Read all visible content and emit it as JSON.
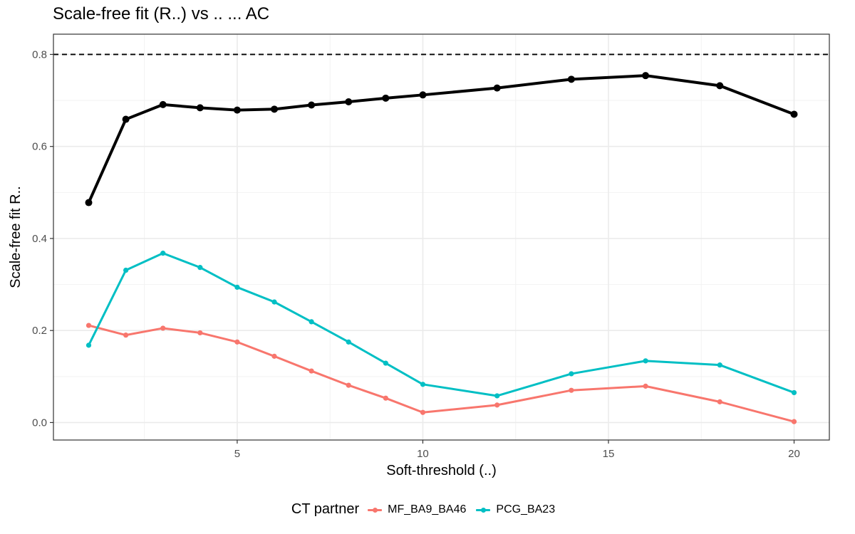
{
  "chart_data": {
    "type": "line",
    "title": "Scale-free fit (R..) vs .. ... AC",
    "xlabel": "Soft-threshold (..)",
    "ylabel": "Scale-free fit R..",
    "xlim": [
      0.05,
      20.95
    ],
    "ylim": [
      -0.038,
      0.844
    ],
    "xticks": [
      5,
      10,
      15,
      20
    ],
    "yticks": [
      0.0,
      0.2,
      0.4,
      0.6,
      0.8
    ],
    "ytick_labels": [
      "0.0",
      "0.2",
      "0.4",
      "0.6",
      "0.8"
    ],
    "grid": true,
    "reference_line": {
      "y": 0.8,
      "style": "dashed",
      "color": "#000000"
    },
    "legend": {
      "title": "CT partner",
      "position": "bottom"
    },
    "x": [
      1,
      2,
      3,
      4,
      5,
      6,
      7,
      8,
      9,
      10,
      12,
      14,
      16,
      18,
      20
    ],
    "series": [
      {
        "name": "",
        "color": "#000000",
        "values": [
          0.478,
          0.659,
          0.691,
          0.684,
          0.679,
          0.681,
          0.69,
          0.697,
          0.705,
          0.712,
          0.727,
          0.746,
          0.754,
          0.732,
          0.67
        ]
      },
      {
        "name": "MF_BA9_BA46",
        "color": "#F8766D",
        "values": [
          0.211,
          0.19,
          0.205,
          0.195,
          0.175,
          0.144,
          0.112,
          0.081,
          0.053,
          0.022,
          0.038,
          0.07,
          0.079,
          0.045,
          0.002
        ]
      },
      {
        "name": "PCG_BA23",
        "color": "#00BFC4",
        "values": [
          0.168,
          0.331,
          0.368,
          0.337,
          0.294,
          0.262,
          0.219,
          0.175,
          0.129,
          0.083,
          0.058,
          0.106,
          0.134,
          0.125,
          0.065
        ]
      }
    ]
  }
}
